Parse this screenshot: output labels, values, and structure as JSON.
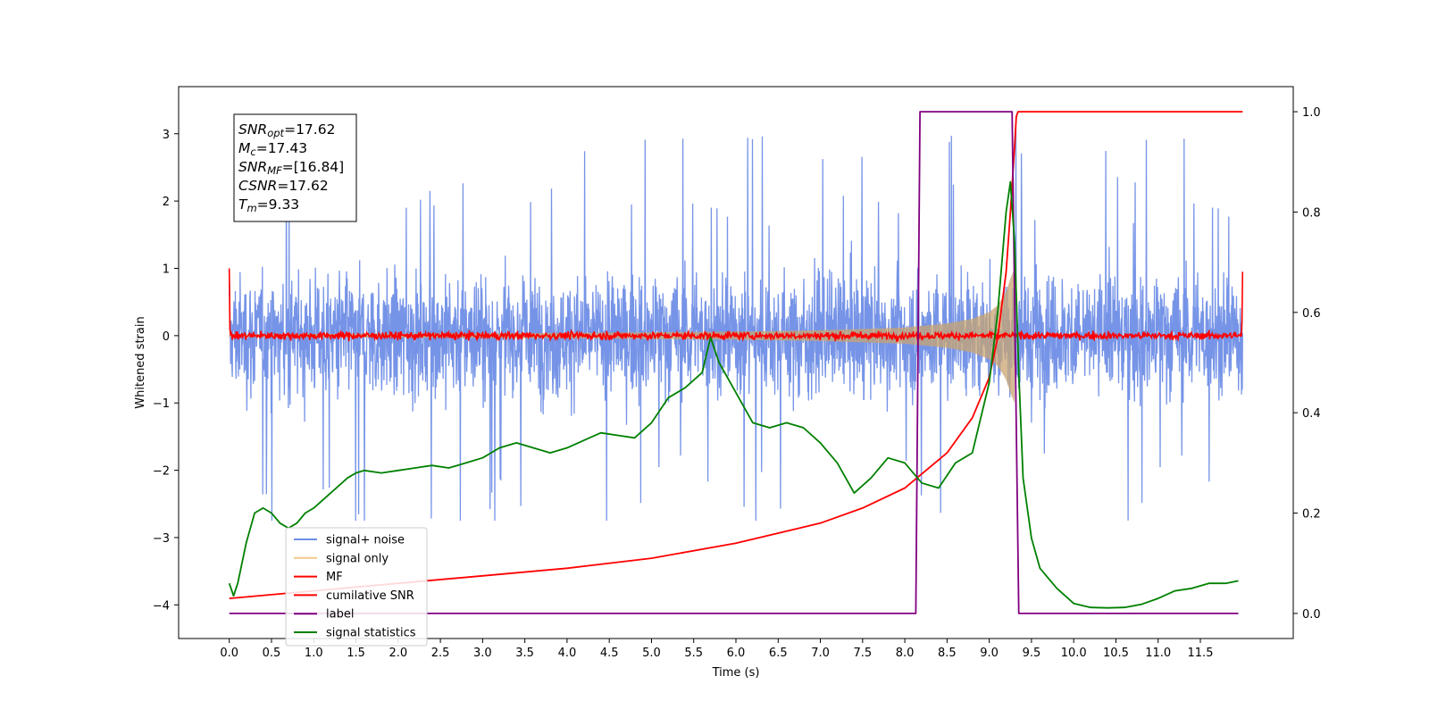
{
  "chart_data": {
    "type": "line",
    "xlabel": "Time (s)",
    "ylabel": "Whitened strain",
    "xlim": [
      -0.6,
      12.6
    ],
    "ylim": [
      -4.5,
      3.7
    ],
    "y2lim": [
      -0.05,
      1.05
    ],
    "x_ticks": [
      "0.0",
      "0.5",
      "1.0",
      "1.5",
      "2.0",
      "2.5",
      "3.0",
      "3.5",
      "4.0",
      "4.5",
      "5.0",
      "5.5",
      "6.0",
      "6.5",
      "7.0",
      "7.5",
      "8.0",
      "8.5",
      "9.0",
      "9.5",
      "10.0",
      "10.5",
      "11.0",
      "11.5"
    ],
    "y_ticks": [
      "3",
      "2",
      "1",
      "0",
      "−1",
      "−2",
      "−3",
      "−4"
    ],
    "y2_ticks": [
      "1.0",
      "0.8",
      "0.6",
      "0.4",
      "0.2",
      "0.0"
    ],
    "grid": false,
    "legend": {
      "location": "lower-left",
      "entries": [
        {
          "label": "signal+ noise",
          "color": "#6f8ee6"
        },
        {
          "label": "signal only",
          "color": "#f5c98a"
        },
        {
          "label": "MF",
          "color": "#ff0000"
        },
        {
          "label": "cumilative SNR",
          "color": "#ff0000"
        },
        {
          "label": "label",
          "color": "#800080"
        },
        {
          "label": "signal statistics",
          "color": "#008000"
        }
      ]
    },
    "series": [
      {
        "name": "signal+ noise",
        "axis": "left",
        "color": "#6f8ee6",
        "description_range": [
          -2.7,
          3.4
        ],
        "x_range": [
          0.0,
          12.0
        ]
      },
      {
        "name": "signal only",
        "axis": "left",
        "color": "#c8a472",
        "x": [
          0.0,
          4.0,
          6.0,
          7.0,
          8.0,
          8.5,
          8.8,
          9.0,
          9.1,
          9.2,
          9.25,
          9.3
        ],
        "envelope": [
          0.02,
          0.04,
          0.06,
          0.08,
          0.12,
          0.18,
          0.25,
          0.35,
          0.45,
          0.65,
          0.85,
          1.0
        ]
      },
      {
        "name": "MF",
        "axis": "left",
        "color": "#ff0000",
        "description": "noise-like trace around 0 with amplitude about 0.1, spikes to 1.0 at t=0 and t=12"
      },
      {
        "name": "cumilative SNR",
        "axis": "right",
        "color": "#ff0000",
        "x": [
          0.0,
          1.0,
          2.0,
          3.0,
          4.0,
          5.0,
          6.0,
          7.0,
          7.5,
          8.0,
          8.5,
          8.8,
          9.0,
          9.1,
          9.2,
          9.25,
          9.3,
          9.32,
          9.34,
          12.0
        ],
        "y": [
          0.03,
          0.045,
          0.06,
          0.075,
          0.09,
          0.11,
          0.14,
          0.18,
          0.21,
          0.25,
          0.32,
          0.39,
          0.47,
          0.55,
          0.68,
          0.8,
          0.93,
          0.99,
          1.0,
          1.0
        ]
      },
      {
        "name": "label",
        "axis": "right",
        "color": "#800080",
        "x": [
          0.0,
          8.13,
          8.18,
          9.27,
          9.35,
          11.95
        ],
        "y": [
          0.0,
          0.0,
          1.0,
          1.0,
          0.0,
          0.0
        ]
      },
      {
        "name": "signal statistics",
        "axis": "right",
        "color": "#008000",
        "x": [
          0.0,
          0.05,
          0.1,
          0.2,
          0.3,
          0.4,
          0.5,
          0.6,
          0.7,
          0.8,
          0.9,
          1.0,
          1.2,
          1.4,
          1.5,
          1.6,
          1.8,
          2.0,
          2.2,
          2.4,
          2.6,
          2.8,
          3.0,
          3.2,
          3.4,
          3.6,
          3.8,
          4.0,
          4.2,
          4.4,
          4.6,
          4.8,
          5.0,
          5.2,
          5.4,
          5.6,
          5.7,
          5.8,
          6.0,
          6.2,
          6.4,
          6.6,
          6.8,
          7.0,
          7.2,
          7.4,
          7.6,
          7.8,
          8.0,
          8.2,
          8.4,
          8.6,
          8.8,
          9.0,
          9.1,
          9.2,
          9.25,
          9.3,
          9.35,
          9.4,
          9.5,
          9.6,
          9.8,
          10.0,
          10.2,
          10.4,
          10.6,
          10.8,
          11.0,
          11.2,
          11.4,
          11.6,
          11.8,
          11.95
        ],
        "y": [
          0.06,
          0.035,
          0.06,
          0.14,
          0.2,
          0.21,
          0.2,
          0.18,
          0.17,
          0.18,
          0.2,
          0.21,
          0.24,
          0.27,
          0.28,
          0.285,
          0.28,
          0.285,
          0.29,
          0.295,
          0.29,
          0.3,
          0.31,
          0.33,
          0.34,
          0.33,
          0.32,
          0.33,
          0.345,
          0.36,
          0.355,
          0.35,
          0.38,
          0.43,
          0.45,
          0.48,
          0.55,
          0.5,
          0.44,
          0.38,
          0.37,
          0.38,
          0.37,
          0.34,
          0.3,
          0.24,
          0.27,
          0.31,
          0.3,
          0.26,
          0.25,
          0.3,
          0.32,
          0.46,
          0.6,
          0.8,
          0.86,
          0.74,
          0.48,
          0.27,
          0.15,
          0.09,
          0.05,
          0.02,
          0.012,
          0.011,
          0.012,
          0.018,
          0.03,
          0.045,
          0.05,
          0.06,
          0.06,
          0.065
        ]
      }
    ],
    "annotation": {
      "lines": [
        {
          "base": "SNR",
          "sub": "opt",
          "value": "=17.62"
        },
        {
          "base": "M",
          "sub": "c",
          "value": "=17.43"
        },
        {
          "base": "SNR",
          "sub": "MF",
          "value": "=[16.84]"
        },
        {
          "base": "CSNR",
          "sub": "",
          "value": "=17.62"
        },
        {
          "base": "T",
          "sub": "m",
          "value": "=9.33"
        }
      ]
    }
  }
}
